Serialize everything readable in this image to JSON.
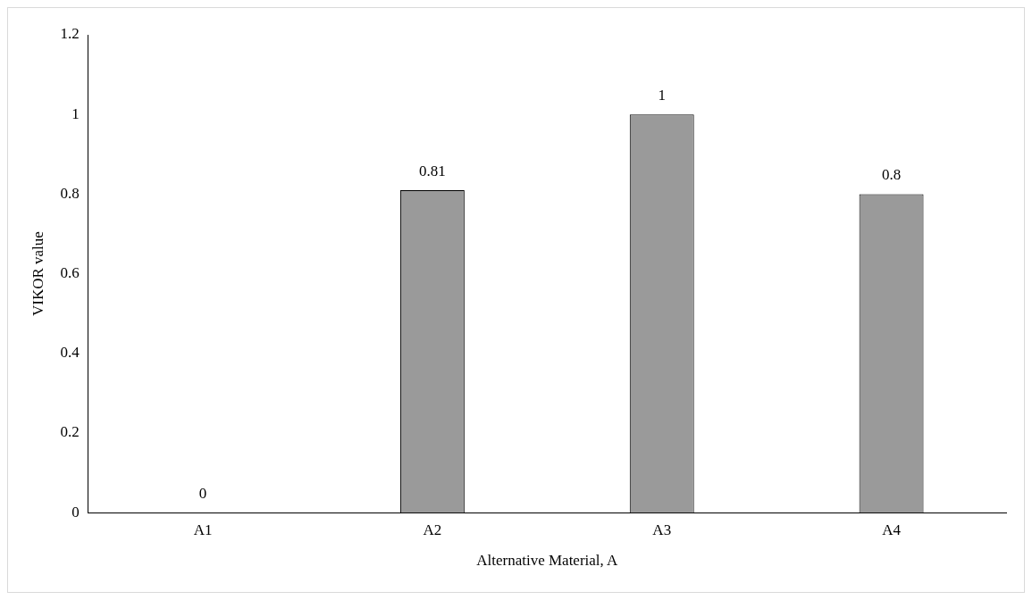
{
  "chart_data": {
    "type": "bar",
    "xlabel": "Alternative Material, A",
    "ylabel": "VIKOR value",
    "categories": [
      "A1",
      "A2",
      "A3",
      "A4"
    ],
    "values": [
      0,
      0.81,
      1,
      0.8
    ],
    "color": "#9a9a9a",
    "ylim": [
      0,
      1.2
    ],
    "yticks": [
      0,
      0.2,
      0.4,
      0.6,
      0.8,
      1,
      1.2
    ],
    "grid": false,
    "legend": false,
    "data_labels": true
  }
}
